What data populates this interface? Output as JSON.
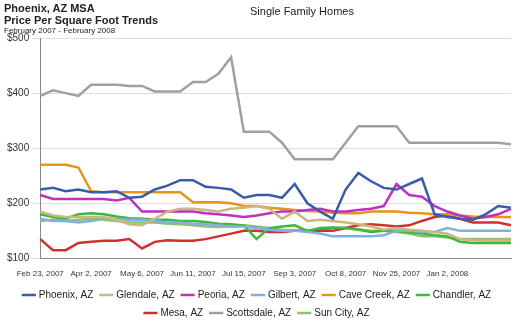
{
  "chart_data": {
    "type": "line",
    "title": [
      "Phoenix, AZ MSA",
      "Price Per Square Foot Trends"
    ],
    "subtitle": "February 2007 - February 2008",
    "annotation": "Single Family Homes",
    "categories": [
      "Feb 23, 2007",
      null,
      null,
      null,
      "Apr 2, 2007",
      null,
      null,
      null,
      "May 6, 2007",
      null,
      null,
      null,
      "Jun 11, 2007",
      null,
      null,
      null,
      "Jul 15, 2007",
      null,
      null,
      null,
      "Sep 3, 2007",
      null,
      null,
      null,
      "Oct 8, 2007",
      null,
      null,
      null,
      "Nov 25, 2007",
      null,
      null,
      null,
      "Jan 2, 2008",
      null,
      null,
      null,
      null,
      null
    ],
    "ylim": [
      100,
      500
    ],
    "yticks": [
      {
        "value": 100,
        "label": "$100"
      },
      {
        "value": 200,
        "label": "$200"
      },
      {
        "value": 300,
        "label": "$300"
      },
      {
        "value": 400,
        "label": "$400"
      },
      {
        "value": 500,
        "label": "$500"
      }
    ],
    "grid": true,
    "legend": "bottom",
    "series": [
      {
        "name": "Phoenix, AZ",
        "color": "#3a5ba9",
        "values": [
          225,
          228,
          222,
          225,
          220,
          220,
          222,
          210,
          212,
          225,
          232,
          242,
          242,
          230,
          228,
          225,
          210,
          215,
          215,
          210,
          235,
          200,
          185,
          172,
          225,
          255,
          240,
          228,
          225,
          235,
          245,
          180,
          175,
          172,
          170,
          180,
          195,
          192
        ]
      },
      {
        "name": "Glendale, AZ",
        "color": "#c8b87a",
        "values": [
          185,
          178,
          175,
          175,
          175,
          175,
          170,
          162,
          160,
          172,
          185,
          190,
          190,
          188,
          185,
          190,
          192,
          195,
          190,
          172,
          185,
          168,
          170,
          168,
          165,
          162,
          158,
          152,
          155,
          152,
          150,
          148,
          145,
          135,
          133,
          132,
          132,
          132
        ]
      },
      {
        "name": "Peoria, AZ",
        "color": "#c030c0",
        "values": [
          215,
          208,
          208,
          208,
          208,
          208,
          205,
          210,
          185,
          185,
          185,
          185,
          185,
          182,
          180,
          178,
          175,
          178,
          182,
          185,
          185,
          188,
          190,
          185,
          185,
          188,
          190,
          195,
          235,
          215,
          212,
          195,
          185,
          178,
          172,
          175,
          180,
          190
        ]
      },
      {
        "name": "Gilbert, AZ",
        "color": "#7fb0e0",
        "values": [
          172,
          168,
          168,
          165,
          168,
          172,
          172,
          170,
          170,
          168,
          165,
          165,
          163,
          162,
          160,
          158,
          158,
          155,
          152,
          150,
          150,
          148,
          145,
          140,
          140,
          140,
          140,
          142,
          150,
          150,
          148,
          148,
          155,
          150,
          150,
          150,
          150,
          150
        ]
      },
      {
        "name": "Cave Creek, AZ",
        "color": "#e8941a",
        "values": [
          270,
          270,
          270,
          265,
          222,
          220,
          220,
          220,
          220,
          220,
          220,
          220,
          202,
          202,
          202,
          200,
          195,
          195,
          192,
          190,
          188,
          186,
          185,
          183,
          182,
          182,
          185,
          185,
          185,
          183,
          182,
          180,
          180,
          178,
          176,
          175,
          175,
          175
        ]
      },
      {
        "name": "Chandler, AZ",
        "color": "#3cb83c",
        "values": [
          180,
          175,
          172,
          180,
          182,
          180,
          176,
          173,
          172,
          170,
          170,
          168,
          168,
          166,
          163,
          162,
          160,
          135,
          155,
          158,
          160,
          150,
          155,
          156,
          155,
          152,
          148,
          150,
          150,
          147,
          145,
          142,
          140,
          130,
          128,
          128,
          128,
          128
        ]
      },
      {
        "name": "Mesa, AZ",
        "color": "#d03030",
        "values": [
          135,
          115,
          115,
          128,
          130,
          132,
          132,
          135,
          118,
          130,
          133,
          132,
          132,
          135,
          140,
          145,
          150,
          150,
          148,
          148,
          150,
          150,
          150,
          150,
          155,
          160,
          162,
          160,
          158,
          160,
          168,
          175,
          178,
          172,
          165,
          165,
          165,
          160
        ]
      },
      {
        "name": "Scottsdale, AZ",
        "color": "#a0a0a0",
        "values": [
          395,
          405,
          400,
          395,
          415,
          415,
          415,
          413,
          413,
          403,
          403,
          403,
          420,
          420,
          435,
          465,
          330,
          330,
          330,
          310,
          280,
          280,
          280,
          280,
          310,
          340,
          340,
          340,
          340,
          310,
          310,
          310,
          310,
          310,
          310,
          310,
          310,
          307
        ]
      },
      {
        "name": "Sun City, AZ",
        "color": "#90c070",
        "values": [
          168,
          170,
          168,
          170,
          172,
          170,
          168,
          165,
          165,
          165,
          163,
          162,
          160,
          158,
          157,
          158,
          160,
          158,
          155,
          152,
          150,
          150,
          152,
          155,
          155,
          153,
          150,
          150,
          148,
          145,
          140,
          140,
          138,
          135,
          135,
          135,
          135,
          135
        ]
      }
    ]
  }
}
